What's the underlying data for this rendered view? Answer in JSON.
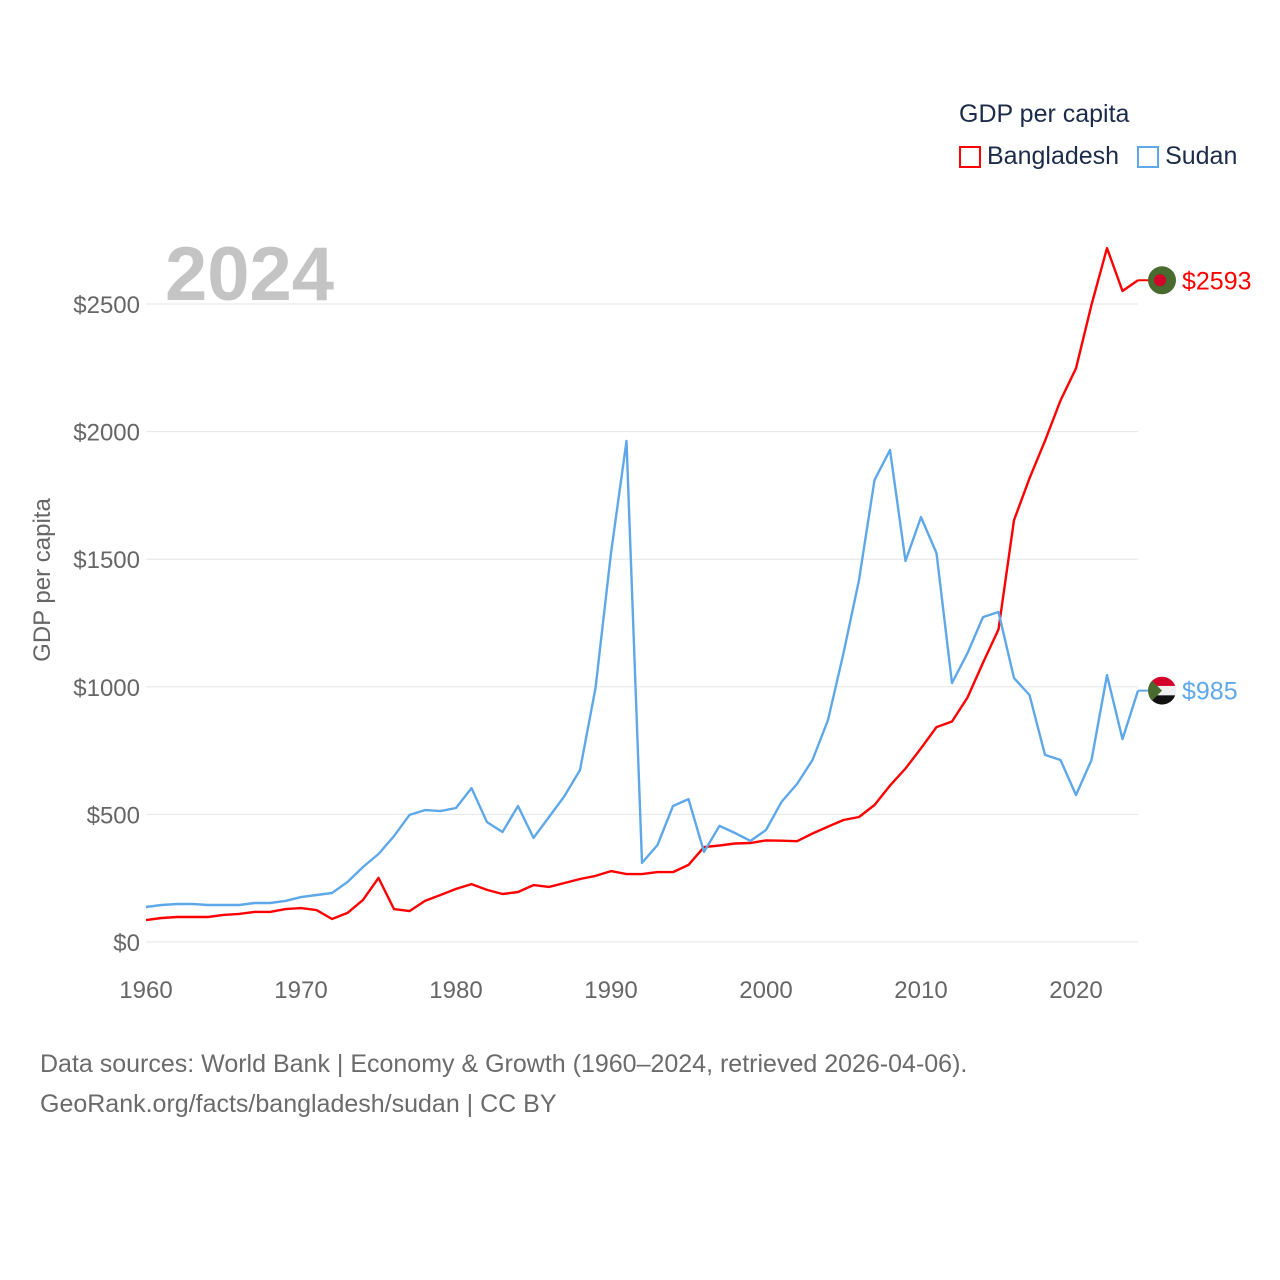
{
  "chart_data": {
    "type": "line",
    "title": "GDP per capita",
    "ylabel": "GDP per capita",
    "xlabel": "",
    "year_label": "2024",
    "xlim": [
      1960,
      2024
    ],
    "ylim": [
      0,
      2750
    ],
    "x_ticks": [
      "1960",
      "1970",
      "1980",
      "1990",
      "2000",
      "2010",
      "2020"
    ],
    "y_ticks": [
      "$0",
      "$500",
      "$1000",
      "$1500",
      "$2000",
      "$2500"
    ],
    "grid": true,
    "legend_placement": "top-right",
    "x": [
      1960,
      1961,
      1962,
      1963,
      1964,
      1965,
      1966,
      1967,
      1968,
      1969,
      1970,
      1971,
      1972,
      1973,
      1974,
      1975,
      1976,
      1977,
      1978,
      1979,
      1980,
      1981,
      1982,
      1983,
      1984,
      1985,
      1986,
      1987,
      1988,
      1989,
      1990,
      1991,
      1992,
      1993,
      1994,
      1995,
      1996,
      1997,
      1998,
      1999,
      2000,
      2001,
      2002,
      2003,
      2004,
      2005,
      2006,
      2007,
      2008,
      2009,
      2010,
      2011,
      2012,
      2013,
      2014,
      2015,
      2016,
      2017,
      2018,
      2019,
      2020,
      2021,
      2022,
      2023,
      2024
    ],
    "series": [
      {
        "name": "Bangladesh",
        "color": "#ff0000",
        "end_label": "$2593",
        "flag": "bangladesh-flag",
        "values": [
          86,
          94,
          98,
          98,
          98,
          106,
          110,
          118,
          118,
          129,
          133,
          125,
          90,
          114,
          165,
          251,
          129,
          121,
          161,
          184,
          208,
          227,
          204,
          188,
          196,
          223,
          216,
          231,
          247,
          259,
          278,
          266,
          266,
          274,
          274,
          302,
          372,
          378,
          386,
          388,
          398,
          397,
          395,
          425,
          452,
          478,
          490,
          537,
          613,
          680,
          759,
          842,
          864,
          958,
          1094,
          1225,
          1653,
          1817,
          1964,
          2122,
          2248,
          2497,
          2719,
          2551,
          2593
        ]
      },
      {
        "name": "Sudan",
        "color": "#5ea8ea",
        "end_label": "$985",
        "flag": "sudan-flag",
        "values": [
          137,
          145,
          149,
          149,
          145,
          145,
          145,
          153,
          153,
          161,
          176,
          184,
          192,
          235,
          294,
          345,
          415,
          498,
          517,
          513,
          525,
          603,
          470,
          431,
          533,
          408,
          490,
          572,
          674,
          995,
          1524,
          1963,
          310,
          380,
          533,
          560,
          353,
          455,
          427,
          396,
          439,
          549,
          619,
          713,
          870,
          1132,
          1418,
          1810,
          1928,
          1493,
          1665,
          1524,
          1015,
          1132,
          1273,
          1293,
          1034,
          968,
          733,
          713,
          576,
          713,
          1046,
          795,
          985
        ]
      }
    ]
  },
  "footer": {
    "line1": "Data sources: World Bank | Economy & Growth (1960–2024, retrieved 2026-04-06).",
    "line2": "GeoRank.org/facts/bangladesh/sudan | CC BY"
  }
}
